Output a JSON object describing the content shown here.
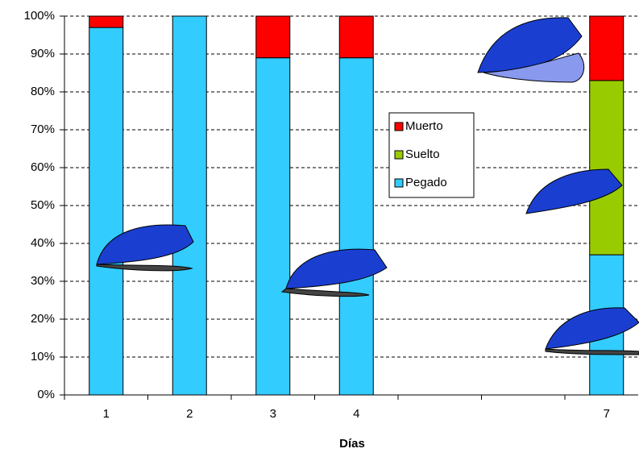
{
  "chart_data": {
    "type": "stacked_bar",
    "x_label": "Días",
    "categories": [
      "1",
      "2",
      "3",
      "4",
      null,
      null,
      "7"
    ],
    "series": [
      {
        "name": "Pegado",
        "color": "#33ccff",
        "values": [
          97,
          100,
          89,
          89,
          null,
          null,
          37
        ]
      },
      {
        "name": "Suelto",
        "color": "#99cc00",
        "values": [
          0,
          0,
          0,
          0,
          null,
          null,
          46
        ]
      },
      {
        "name": "Muerto",
        "color": "#ff0000",
        "values": [
          3,
          0,
          11,
          11,
          null,
          null,
          17
        ]
      }
    ],
    "ylim": [
      0,
      100
    ],
    "yticks": [
      {
        "value": 0,
        "label": "0%"
      },
      {
        "value": 10,
        "label": "10%"
      },
      {
        "value": 20,
        "label": "20%"
      },
      {
        "value": 30,
        "label": "30%"
      },
      {
        "value": 40,
        "label": "40%"
      },
      {
        "value": 50,
        "label": "50%"
      },
      {
        "value": 60,
        "label": "60%"
      },
      {
        "value": 70,
        "label": "70%"
      },
      {
        "value": 80,
        "label": "80%"
      },
      {
        "value": 90,
        "label": "90%"
      },
      {
        "value": 100,
        "label": "100%"
      }
    ],
    "grid": true
  }
}
